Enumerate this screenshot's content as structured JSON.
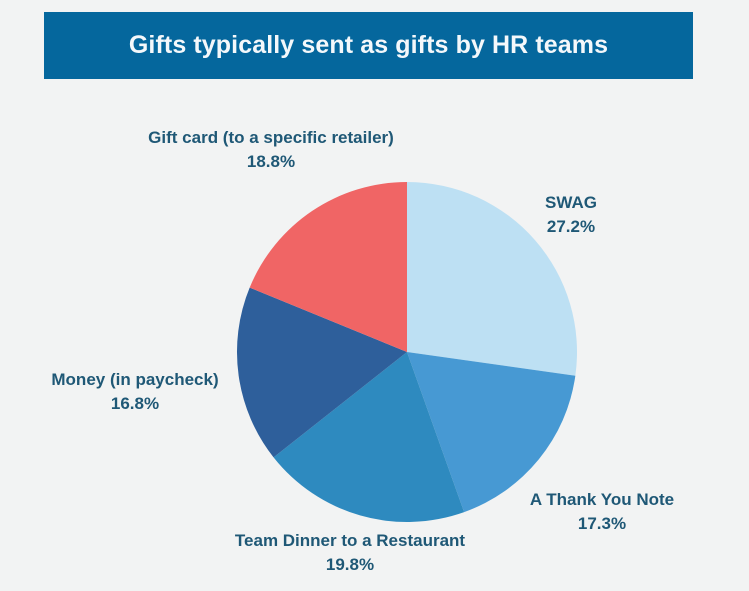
{
  "title": "Gifts typically sent as gifts by HR teams",
  "colors": {
    "title_bg": "#05679d",
    "title_text": "#f4f8fb",
    "label_text": "#1f5876",
    "background": "#f2f3f3"
  },
  "chart_data": {
    "type": "pie",
    "title": "Gifts typically sent as gifts by HR teams",
    "start_angle": "12 o'clock",
    "direction": "clockwise",
    "categories": [
      "SWAG",
      "A Thank You Note",
      "Team Dinner to a Restaurant",
      "Money (in paycheck)",
      "Gift card (to a specific retailer)"
    ],
    "values": [
      27.2,
      17.3,
      19.8,
      16.8,
      18.8
    ],
    "unit": "%",
    "colors": [
      "#bde0f3",
      "#4799d3",
      "#2e8abf",
      "#2e5f9b",
      "#f06565"
    ],
    "legend": "none (direct labels)"
  },
  "labels": [
    {
      "name": "SWAG",
      "value": "27.2%"
    },
    {
      "name": "A Thank You Note",
      "value": "17.3%"
    },
    {
      "name": "Team Dinner to a Restaurant",
      "value": "19.8%"
    },
    {
      "name": "Money (in paycheck)",
      "value": "16.8%"
    },
    {
      "name": "Gift card (to a specific retailer)",
      "value": "18.8%"
    }
  ]
}
